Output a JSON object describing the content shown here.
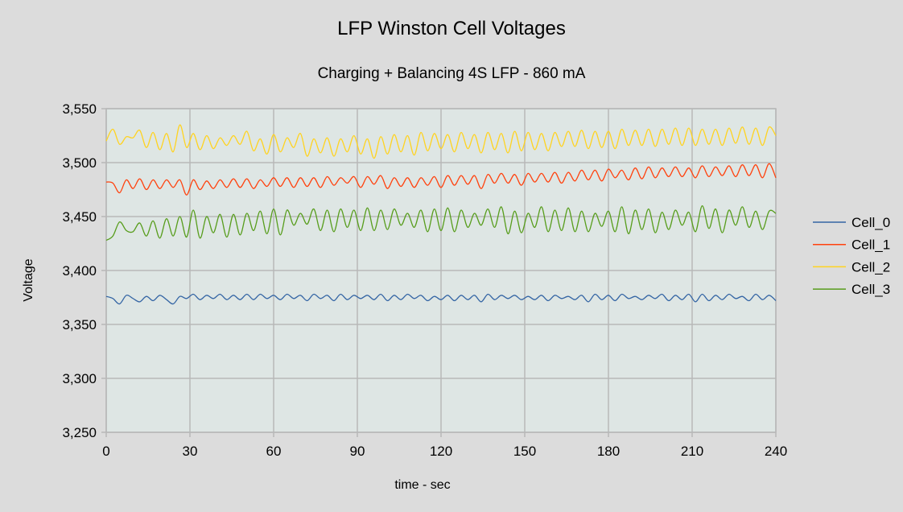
{
  "chart_data": {
    "type": "line",
    "title": "LFP Winston Cell Voltages",
    "subtitle": "Charging + Balancing 4S LFP - 860 mA",
    "xlabel": "time - sec",
    "ylabel": "Voltage",
    "xlim": [
      0,
      240
    ],
    "ylim": [
      3.25,
      3.55
    ],
    "xticks": [
      0,
      30,
      60,
      90,
      120,
      150,
      180,
      210,
      240
    ],
    "yticks": [
      3.25,
      3.3,
      3.35,
      3.4,
      3.45,
      3.5,
      3.55
    ],
    "ytick_labels": [
      "3,250",
      "3,300",
      "3,350",
      "3,400",
      "3,450",
      "3,500",
      "3,550"
    ],
    "grid": true,
    "legend_position": "right",
    "x_sample_interval_note": "values evenly spaced from 0 to 240 sec",
    "series": [
      {
        "name": "Cell_0",
        "color": "#3465a4",
        "values": [
          3.376,
          3.374,
          3.369,
          3.377,
          3.374,
          3.371,
          3.376,
          3.372,
          3.377,
          3.373,
          3.369,
          3.376,
          3.374,
          3.378,
          3.373,
          3.377,
          3.374,
          3.378,
          3.373,
          3.377,
          3.373,
          3.378,
          3.373,
          3.378,
          3.374,
          3.377,
          3.373,
          3.378,
          3.374,
          3.377,
          3.372,
          3.378,
          3.374,
          3.377,
          3.372,
          3.378,
          3.373,
          3.377,
          3.374,
          3.377,
          3.373,
          3.378,
          3.372,
          3.377,
          3.373,
          3.378,
          3.374,
          3.377,
          3.372,
          3.376,
          3.373,
          3.377,
          3.372,
          3.377,
          3.373,
          3.377,
          3.371,
          3.378,
          3.373,
          3.377,
          3.374,
          3.377,
          3.373,
          3.376,
          3.373,
          3.377,
          3.372,
          3.377,
          3.374,
          3.376,
          3.373,
          3.377,
          3.371,
          3.378,
          3.373,
          3.377,
          3.372,
          3.378,
          3.374,
          3.376,
          3.373,
          3.377,
          3.374,
          3.378,
          3.372,
          3.377,
          3.373,
          3.378,
          3.371,
          3.378,
          3.372,
          3.377,
          3.373,
          3.378,
          3.374,
          3.376,
          3.372,
          3.378,
          3.373,
          3.377,
          3.372
        ]
      },
      {
        "name": "Cell_1",
        "color": "#ff420e",
        "values": [
          3.482,
          3.481,
          3.472,
          3.484,
          3.476,
          3.485,
          3.475,
          3.484,
          3.476,
          3.484,
          3.477,
          3.484,
          3.47,
          3.484,
          3.475,
          3.483,
          3.476,
          3.484,
          3.477,
          3.485,
          3.477,
          3.485,
          3.476,
          3.484,
          3.478,
          3.486,
          3.478,
          3.486,
          3.477,
          3.486,
          3.478,
          3.486,
          3.477,
          3.487,
          3.479,
          3.486,
          3.481,
          3.487,
          3.477,
          3.487,
          3.48,
          3.488,
          3.476,
          3.486,
          3.478,
          3.486,
          3.477,
          3.486,
          3.479,
          3.487,
          3.477,
          3.488,
          3.479,
          3.488,
          3.48,
          3.488,
          3.476,
          3.489,
          3.481,
          3.49,
          3.481,
          3.489,
          3.479,
          3.49,
          3.482,
          3.49,
          3.482,
          3.491,
          3.481,
          3.491,
          3.483,
          3.493,
          3.484,
          3.493,
          3.483,
          3.494,
          3.486,
          3.493,
          3.484,
          3.495,
          3.485,
          3.496,
          3.486,
          3.495,
          3.487,
          3.496,
          3.487,
          3.495,
          3.486,
          3.497,
          3.487,
          3.496,
          3.488,
          3.497,
          3.487,
          3.498,
          3.488,
          3.498,
          3.486,
          3.499,
          3.486
        ]
      },
      {
        "name": "Cell_2",
        "color": "#ffd320",
        "values": [
          3.52,
          3.531,
          3.517,
          3.524,
          3.523,
          3.53,
          3.514,
          3.528,
          3.512,
          3.527,
          3.51,
          3.535,
          3.514,
          3.527,
          3.512,
          3.525,
          3.513,
          3.523,
          3.516,
          3.525,
          3.517,
          3.529,
          3.511,
          3.522,
          3.508,
          3.526,
          3.51,
          3.523,
          3.514,
          3.527,
          3.506,
          3.522,
          3.509,
          3.523,
          3.506,
          3.522,
          3.51,
          3.525,
          3.508,
          3.522,
          3.504,
          3.524,
          3.508,
          3.526,
          3.51,
          3.525,
          3.507,
          3.528,
          3.511,
          3.527,
          3.513,
          3.526,
          3.51,
          3.528,
          3.513,
          3.526,
          3.509,
          3.528,
          3.512,
          3.527,
          3.509,
          3.529,
          3.511,
          3.528,
          3.512,
          3.527,
          3.511,
          3.528,
          3.515,
          3.529,
          3.515,
          3.53,
          3.513,
          3.529,
          3.514,
          3.529,
          3.513,
          3.531,
          3.516,
          3.53,
          3.516,
          3.531,
          3.515,
          3.531,
          3.517,
          3.532,
          3.516,
          3.532,
          3.516,
          3.531,
          3.517,
          3.531,
          3.516,
          3.532,
          3.518,
          3.533,
          3.517,
          3.532,
          3.516,
          3.533,
          3.525
        ]
      },
      {
        "name": "Cell_3",
        "color": "#579d1c",
        "values": [
          3.428,
          3.432,
          3.445,
          3.437,
          3.436,
          3.444,
          3.432,
          3.446,
          3.43,
          3.448,
          3.432,
          3.45,
          3.431,
          3.456,
          3.43,
          3.45,
          3.435,
          3.452,
          3.431,
          3.452,
          3.433,
          3.453,
          3.437,
          3.455,
          3.434,
          3.457,
          3.433,
          3.456,
          3.442,
          3.453,
          3.443,
          3.457,
          3.437,
          3.456,
          3.436,
          3.457,
          3.44,
          3.456,
          3.437,
          3.458,
          3.437,
          3.456,
          3.438,
          3.457,
          3.442,
          3.453,
          3.44,
          3.456,
          3.436,
          3.457,
          3.437,
          3.458,
          3.436,
          3.456,
          3.44,
          3.453,
          3.442,
          3.457,
          3.44,
          3.459,
          3.434,
          3.455,
          3.435,
          3.453,
          3.44,
          3.459,
          3.436,
          3.456,
          3.437,
          3.458,
          3.436,
          3.455,
          3.436,
          3.453,
          3.441,
          3.455,
          3.436,
          3.459,
          3.434,
          3.456,
          3.438,
          3.457,
          3.435,
          3.454,
          3.438,
          3.456,
          3.442,
          3.454,
          3.436,
          3.46,
          3.439,
          3.457,
          3.435,
          3.456,
          3.442,
          3.459,
          3.44,
          3.455,
          3.438,
          3.455,
          3.453
        ]
      }
    ]
  }
}
